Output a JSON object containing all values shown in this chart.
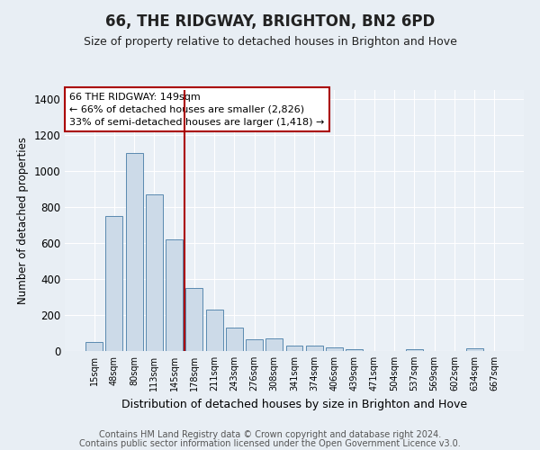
{
  "title": "66, THE RIDGWAY, BRIGHTON, BN2 6PD",
  "subtitle": "Size of property relative to detached houses in Brighton and Hove",
  "xlabel": "Distribution of detached houses by size in Brighton and Hove",
  "ylabel": "Number of detached properties",
  "bar_labels": [
    "15sqm",
    "48sqm",
    "80sqm",
    "113sqm",
    "145sqm",
    "178sqm",
    "211sqm",
    "243sqm",
    "276sqm",
    "308sqm",
    "341sqm",
    "374sqm",
    "406sqm",
    "439sqm",
    "471sqm",
    "504sqm",
    "537sqm",
    "569sqm",
    "602sqm",
    "634sqm",
    "667sqm"
  ],
  "bar_values": [
    50,
    750,
    1100,
    870,
    620,
    350,
    228,
    130,
    65,
    70,
    28,
    28,
    20,
    12,
    0,
    0,
    12,
    0,
    0,
    15,
    0
  ],
  "bar_color": "#ccdae8",
  "bar_edge_color": "#5a8ab0",
  "vline_color": "#aa0000",
  "annotation_text": "66 THE RIDGWAY: 149sqm\n← 66% of detached houses are smaller (2,826)\n33% of semi-detached houses are larger (1,418) →",
  "annotation_box_color": "#ffffff",
  "annotation_box_edge_color": "#aa0000",
  "ylim": [
    0,
    1450
  ],
  "yticks": [
    0,
    200,
    400,
    600,
    800,
    1000,
    1200,
    1400
  ],
  "background_color": "#e8eef4",
  "plot_bg_color": "#eaf0f6",
  "footer_line1": "Contains HM Land Registry data © Crown copyright and database right 2024.",
  "footer_line2": "Contains public sector information licensed under the Open Government Licence v3.0.",
  "title_fontsize": 12,
  "subtitle_fontsize": 9,
  "xlabel_fontsize": 9,
  "ylabel_fontsize": 8.5,
  "footer_fontsize": 7
}
